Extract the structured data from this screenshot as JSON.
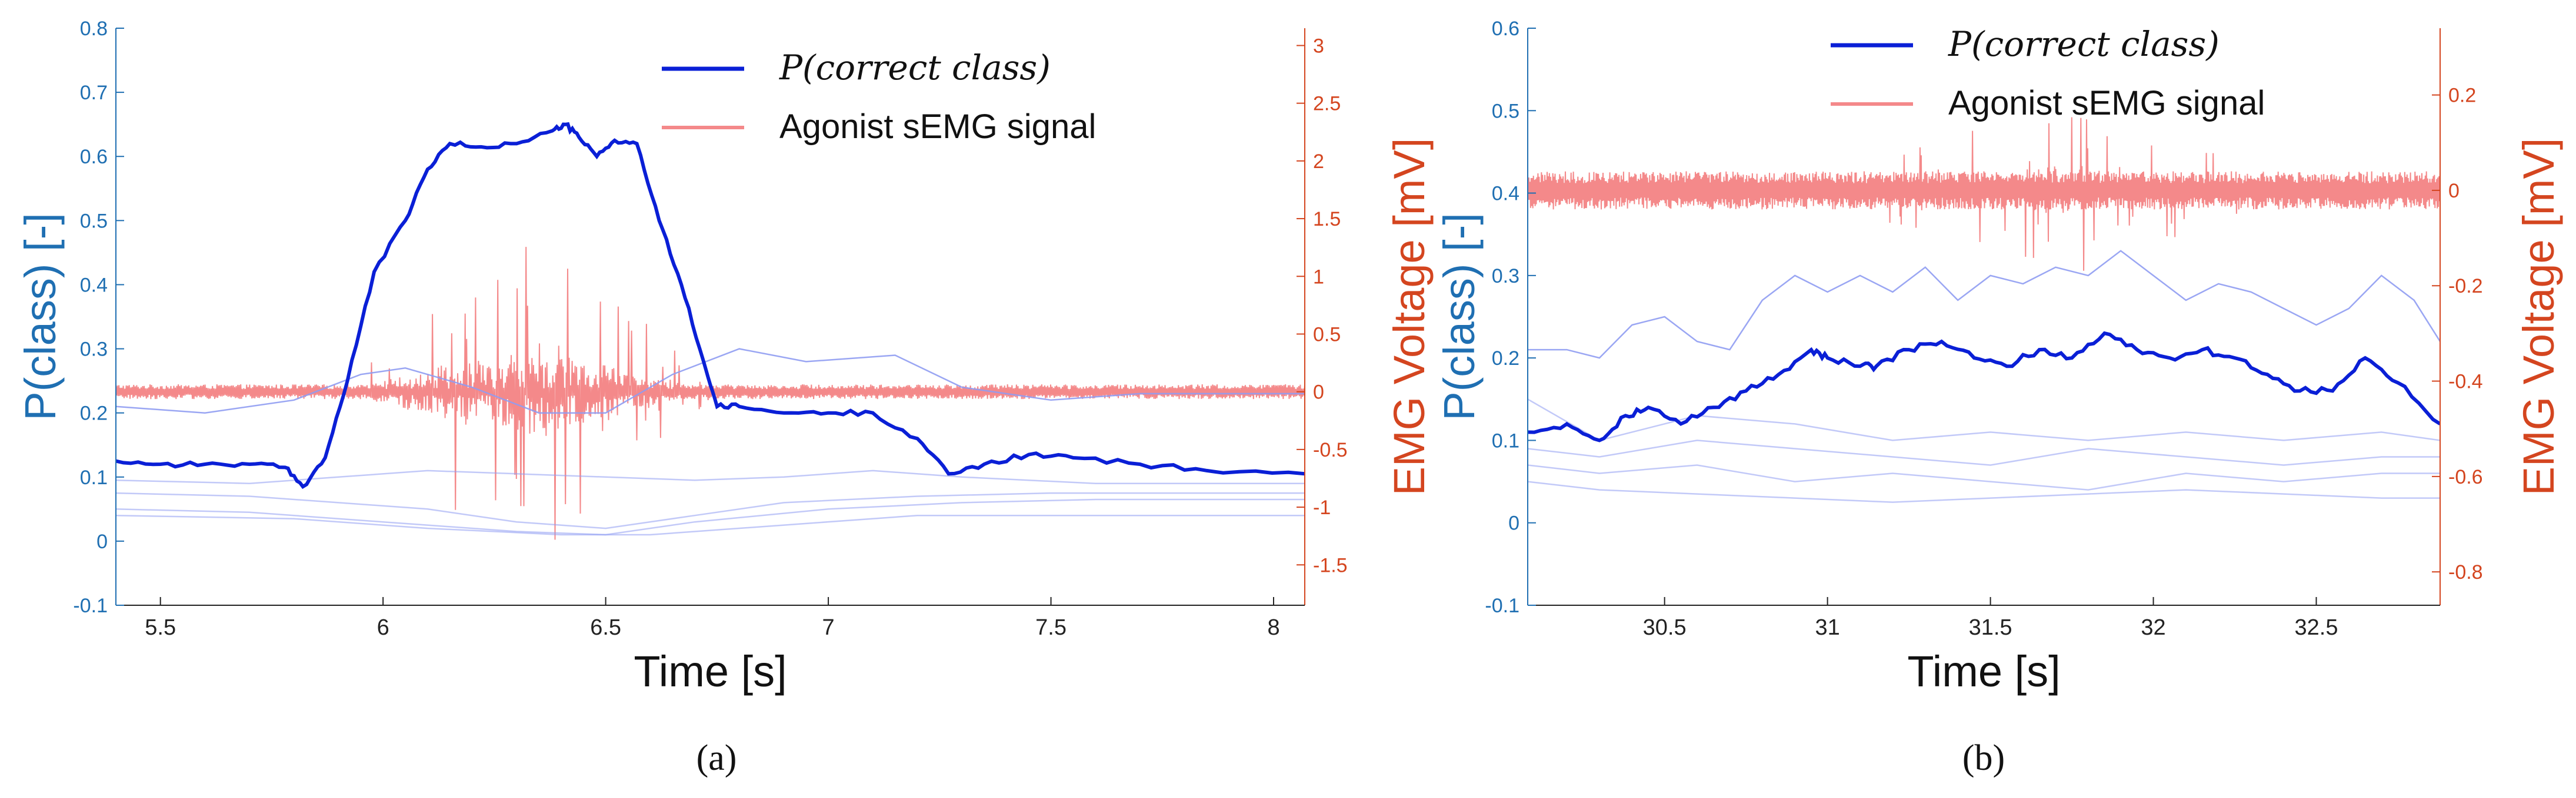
{
  "colors": {
    "left_axis": "#1f6fb2",
    "right_axis": "#d4451f",
    "correct_line": "#0a1fd6",
    "other_lines": "#8f9cf2",
    "emg": "#f4898a"
  },
  "chart_data": [
    {
      "type": "line",
      "panel_label": "(a)",
      "legend_position": "top-right",
      "grid": false,
      "xlabel": "Time [s]",
      "ylabel_left": "P(class) [-]",
      "ylabel_right": "EMG Voltage [mV]",
      "xlim": [
        5.4,
        8.07
      ],
      "ylim_left": [
        -0.1,
        0.8
      ],
      "ylim_right": [
        -1.85,
        3.15
      ],
      "x_ticks": [
        "5.5",
        "6",
        "6.5",
        "7",
        "7.5",
        "8"
      ],
      "x_tick_values": [
        5.5,
        6,
        6.5,
        7,
        7.5,
        8
      ],
      "y_ticks_left": [
        "-0.1",
        "0",
        "0.1",
        "0.2",
        "0.3",
        "0.4",
        "0.5",
        "0.6",
        "0.7",
        "0.8"
      ],
      "y_tick_values_left": [
        -0.1,
        0,
        0.1,
        0.2,
        0.3,
        0.4,
        0.5,
        0.6,
        0.7,
        0.8
      ],
      "y_ticks_right": [
        "-1.5",
        "-1",
        "-0.5",
        "0",
        "0.5",
        "1",
        "1.5",
        "2",
        "2.5",
        "3"
      ],
      "y_tick_values_right": [
        -1.5,
        -1,
        -0.5,
        0,
        0.5,
        1,
        1.5,
        2,
        2.5,
        3
      ],
      "legend": [
        {
          "label": "P(correct class)",
          "style": "correct"
        },
        {
          "label": "Agonist sEMG signal",
          "style": "emg"
        }
      ],
      "correct_series": {
        "name": "P(correct class)",
        "x": [
          5.4,
          5.5,
          5.6,
          5.7,
          5.78,
          5.82,
          5.87,
          5.92,
          5.98,
          6.05,
          6.1,
          6.15,
          6.22,
          6.3,
          6.38,
          6.41,
          6.44,
          6.48,
          6.52,
          6.57,
          6.62,
          6.67,
          6.72,
          6.75,
          6.8,
          6.9,
          7.0,
          7.1,
          7.2,
          7.27,
          7.35,
          7.45,
          7.55,
          7.7,
          7.85,
          8.07
        ],
        "y": [
          0.125,
          0.12,
          0.12,
          0.12,
          0.115,
          0.085,
          0.13,
          0.25,
          0.42,
          0.5,
          0.58,
          0.62,
          0.615,
          0.62,
          0.64,
          0.65,
          0.63,
          0.6,
          0.625,
          0.62,
          0.5,
          0.4,
          0.28,
          0.21,
          0.21,
          0.2,
          0.2,
          0.2,
          0.16,
          0.105,
          0.12,
          0.135,
          0.13,
          0.12,
          0.11,
          0.105
        ]
      },
      "other_series": [
        {
          "x": [
            5.4,
            5.6,
            5.8,
            5.95,
            6.05,
            6.2,
            6.35,
            6.5,
            6.65,
            6.8,
            6.95,
            7.15,
            7.3,
            7.5,
            7.7,
            8.07
          ],
          "y": [
            0.21,
            0.2,
            0.22,
            0.26,
            0.27,
            0.24,
            0.2,
            0.2,
            0.26,
            0.3,
            0.28,
            0.29,
            0.24,
            0.22,
            0.23,
            0.23
          ]
        },
        {
          "x": [
            5.4,
            5.7,
            5.9,
            6.1,
            6.3,
            6.5,
            6.7,
            6.9,
            7.1,
            7.3,
            7.6,
            8.07
          ],
          "y": [
            0.095,
            0.09,
            0.1,
            0.11,
            0.105,
            0.1,
            0.095,
            0.1,
            0.11,
            0.1,
            0.09,
            0.09
          ]
        },
        {
          "x": [
            5.4,
            5.7,
            5.9,
            6.1,
            6.3,
            6.5,
            6.7,
            6.9,
            7.2,
            7.5,
            8.07
          ],
          "y": [
            0.075,
            0.07,
            0.06,
            0.05,
            0.03,
            0.02,
            0.04,
            0.06,
            0.07,
            0.075,
            0.075
          ]
        },
        {
          "x": [
            5.4,
            5.7,
            6.0,
            6.3,
            6.5,
            6.7,
            7.0,
            7.3,
            7.6,
            8.07
          ],
          "y": [
            0.05,
            0.045,
            0.03,
            0.015,
            0.01,
            0.03,
            0.05,
            0.06,
            0.065,
            0.065
          ]
        },
        {
          "x": [
            5.4,
            5.8,
            6.1,
            6.4,
            6.6,
            6.9,
            7.2,
            7.6,
            8.07
          ],
          "y": [
            0.04,
            0.035,
            0.02,
            0.01,
            0.01,
            0.025,
            0.04,
            0.04,
            0.04
          ]
        }
      ],
      "emg": {
        "baseline": 0,
        "noise": 0.04,
        "burst_start": 5.9,
        "burst_end": 6.75,
        "burst_peak_max": 1.7,
        "burst_peak_min": -1.5
      }
    },
    {
      "type": "line",
      "panel_label": "(b)",
      "legend_position": "top-right",
      "grid": false,
      "xlabel": "Time [s]",
      "ylabel_left": "P(class) [-]",
      "ylabel_right": "EMG Voltage [mV]",
      "xlim": [
        30.08,
        32.88
      ],
      "ylim_left": [
        -0.1,
        0.6
      ],
      "ylim_right": [
        -0.87,
        0.34
      ],
      "x_ticks": [
        "30.5",
        "31",
        "31.5",
        "32",
        "32.5"
      ],
      "x_tick_values": [
        30.5,
        31,
        31.5,
        32,
        32.5
      ],
      "y_ticks_left": [
        "-0.1",
        "0",
        "0.1",
        "0.2",
        "0.3",
        "0.4",
        "0.5",
        "0.6"
      ],
      "y_tick_values_left": [
        -0.1,
        0,
        0.1,
        0.2,
        0.3,
        0.4,
        0.5,
        0.6
      ],
      "y_ticks_right": [
        "-0.8",
        "-0.6",
        "-0.4",
        "-0.2",
        "0",
        "0.2"
      ],
      "y_tick_values_right": [
        -0.8,
        -0.6,
        -0.4,
        -0.2,
        0,
        0.2
      ],
      "legend": [
        {
          "label": "P(correct class)",
          "style": "correct"
        },
        {
          "label": "Agonist sEMG signal",
          "style": "emg"
        }
      ],
      "correct_series": {
        "name": "P(correct class)",
        "x": [
          30.08,
          30.2,
          30.3,
          30.38,
          30.45,
          30.55,
          30.65,
          30.75,
          30.85,
          30.95,
          31.0,
          31.1,
          31.15,
          31.25,
          31.35,
          31.45,
          31.55,
          31.65,
          31.75,
          31.85,
          31.95,
          32.05,
          32.15,
          32.25,
          32.35,
          32.45,
          32.55,
          32.65,
          32.75,
          32.88
        ],
        "y": [
          0.11,
          0.12,
          0.1,
          0.13,
          0.14,
          0.12,
          0.14,
          0.16,
          0.18,
          0.21,
          0.2,
          0.19,
          0.19,
          0.21,
          0.22,
          0.2,
          0.19,
          0.21,
          0.2,
          0.23,
          0.21,
          0.2,
          0.21,
          0.2,
          0.18,
          0.16,
          0.16,
          0.2,
          0.17,
          0.12
        ]
      },
      "other_series": [
        {
          "x": [
            30.08,
            30.2,
            30.3,
            30.4,
            30.5,
            30.6,
            30.7,
            30.8,
            30.9,
            31.0,
            31.1,
            31.2,
            31.3,
            31.4,
            31.5,
            31.6,
            31.7,
            31.8,
            31.9,
            32.0,
            32.1,
            32.2,
            32.3,
            32.4,
            32.5,
            32.6,
            32.7,
            32.8,
            32.88
          ],
          "y": [
            0.21,
            0.21,
            0.2,
            0.24,
            0.25,
            0.22,
            0.21,
            0.27,
            0.3,
            0.28,
            0.3,
            0.28,
            0.31,
            0.27,
            0.3,
            0.29,
            0.31,
            0.3,
            0.33,
            0.3,
            0.27,
            0.29,
            0.28,
            0.26,
            0.24,
            0.26,
            0.3,
            0.27,
            0.22
          ]
        },
        {
          "x": [
            30.08,
            30.3,
            30.6,
            30.9,
            31.2,
            31.5,
            31.8,
            32.1,
            32.4,
            32.7,
            32.88
          ],
          "y": [
            0.15,
            0.1,
            0.13,
            0.12,
            0.1,
            0.11,
            0.1,
            0.11,
            0.1,
            0.11,
            0.1
          ]
        },
        {
          "x": [
            30.08,
            30.3,
            30.6,
            30.9,
            31.2,
            31.5,
            31.8,
            32.1,
            32.4,
            32.7,
            32.88
          ],
          "y": [
            0.09,
            0.08,
            0.1,
            0.09,
            0.08,
            0.07,
            0.09,
            0.08,
            0.07,
            0.08,
            0.08
          ]
        },
        {
          "x": [
            30.08,
            30.3,
            30.6,
            30.9,
            31.2,
            31.5,
            31.8,
            32.1,
            32.4,
            32.7,
            32.88
          ],
          "y": [
            0.07,
            0.06,
            0.07,
            0.05,
            0.06,
            0.05,
            0.04,
            0.06,
            0.05,
            0.06,
            0.06
          ]
        },
        {
          "x": [
            30.08,
            30.3,
            30.6,
            30.9,
            31.2,
            31.5,
            31.8,
            32.1,
            32.4,
            32.7,
            32.88
          ],
          "y": [
            0.05,
            0.04,
            0.035,
            0.03,
            0.025,
            0.03,
            0.035,
            0.04,
            0.035,
            0.03,
            0.03
          ]
        }
      ],
      "emg": {
        "baseline": 0,
        "noise": 0.025,
        "burst_start": 30.9,
        "burst_end": 32.5,
        "burst_peak_max": 0.2,
        "burst_peak_min": -0.12
      }
    }
  ]
}
